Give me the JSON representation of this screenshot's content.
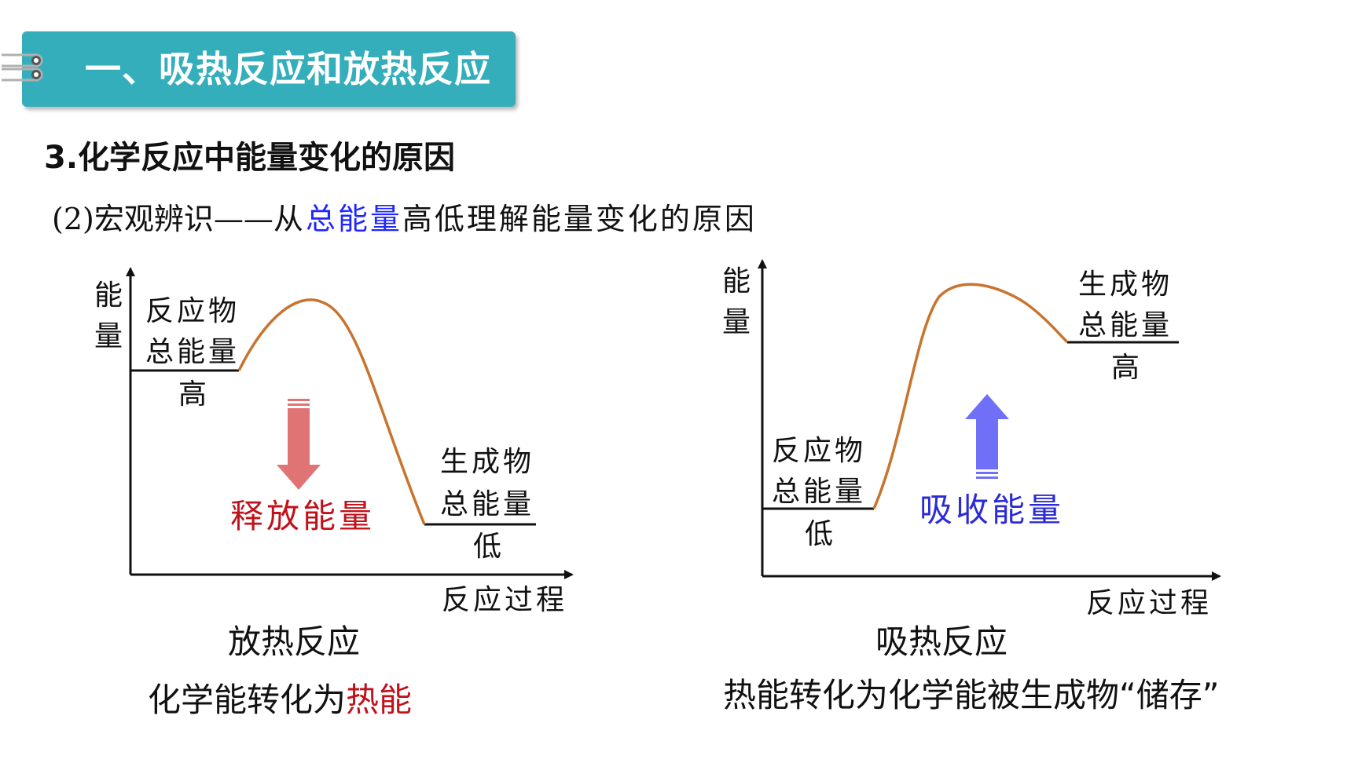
{
  "banner": {
    "title": "一、吸热反应和放热反应"
  },
  "heading": "3.化学反应中能量变化的原因",
  "subheading": {
    "prefix": "(2)宏观辨识——",
    "from": "从",
    "highlight": "总能量",
    "rest": "高低理解能量变化的原因"
  },
  "left_diagram": {
    "y_axis_label": [
      "能",
      "量"
    ],
    "x_axis_label": "反应过程",
    "reactant_label": [
      "反应物",
      "总能量",
      "高"
    ],
    "product_label": [
      "生成物",
      "总能量",
      "低"
    ],
    "arrow_label": "释放能量",
    "title": "放热反应",
    "summary_prefix": "化学能转化为",
    "summary_highlight": "热能"
  },
  "right_diagram": {
    "y_axis_label": [
      "能",
      "量"
    ],
    "x_axis_label": "反应过程",
    "reactant_label": [
      "反应物",
      "总能量",
      "低"
    ],
    "product_label": [
      "生成物",
      "总能量",
      "高"
    ],
    "arrow_label": "吸收能量",
    "title": "吸热反应",
    "summary": "热能转化为化学能被生成物“储存”"
  },
  "colors": {
    "banner": "#35aebb",
    "curve": "#c8742e",
    "release": "#c0121b",
    "release_arrow": "#e07474",
    "absorb": "#2b2bd6",
    "absorb_arrow": "#6f6ff7",
    "highlight_blue": "#1f27ff"
  }
}
